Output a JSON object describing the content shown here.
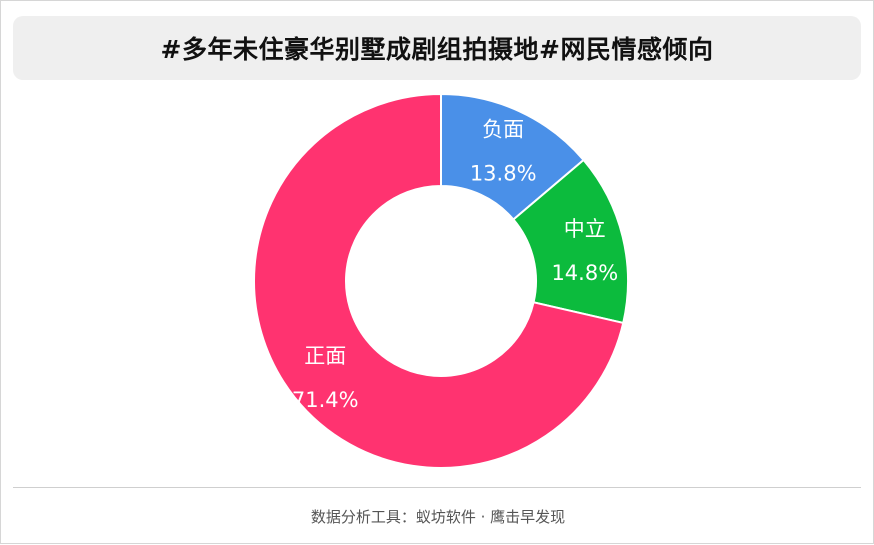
{
  "title": "#多年未住豪华别墅成剧组拍摄地#网民情感倾向",
  "chart_data": {
    "type": "pie",
    "donut": true,
    "slices": [
      {
        "label": "负面",
        "value": 13.8,
        "value_text": "13.8%",
        "color": "#4a90e8"
      },
      {
        "label": "中立",
        "value": 14.8,
        "value_text": "14.8%",
        "color": "#0cbb3d"
      },
      {
        "label": "正面",
        "value": 71.4,
        "value_text": "71.4%",
        "color": "#ff3370"
      }
    ]
  },
  "footer": "数据分析工具：蚁坊软件 · 鹰击早发现"
}
